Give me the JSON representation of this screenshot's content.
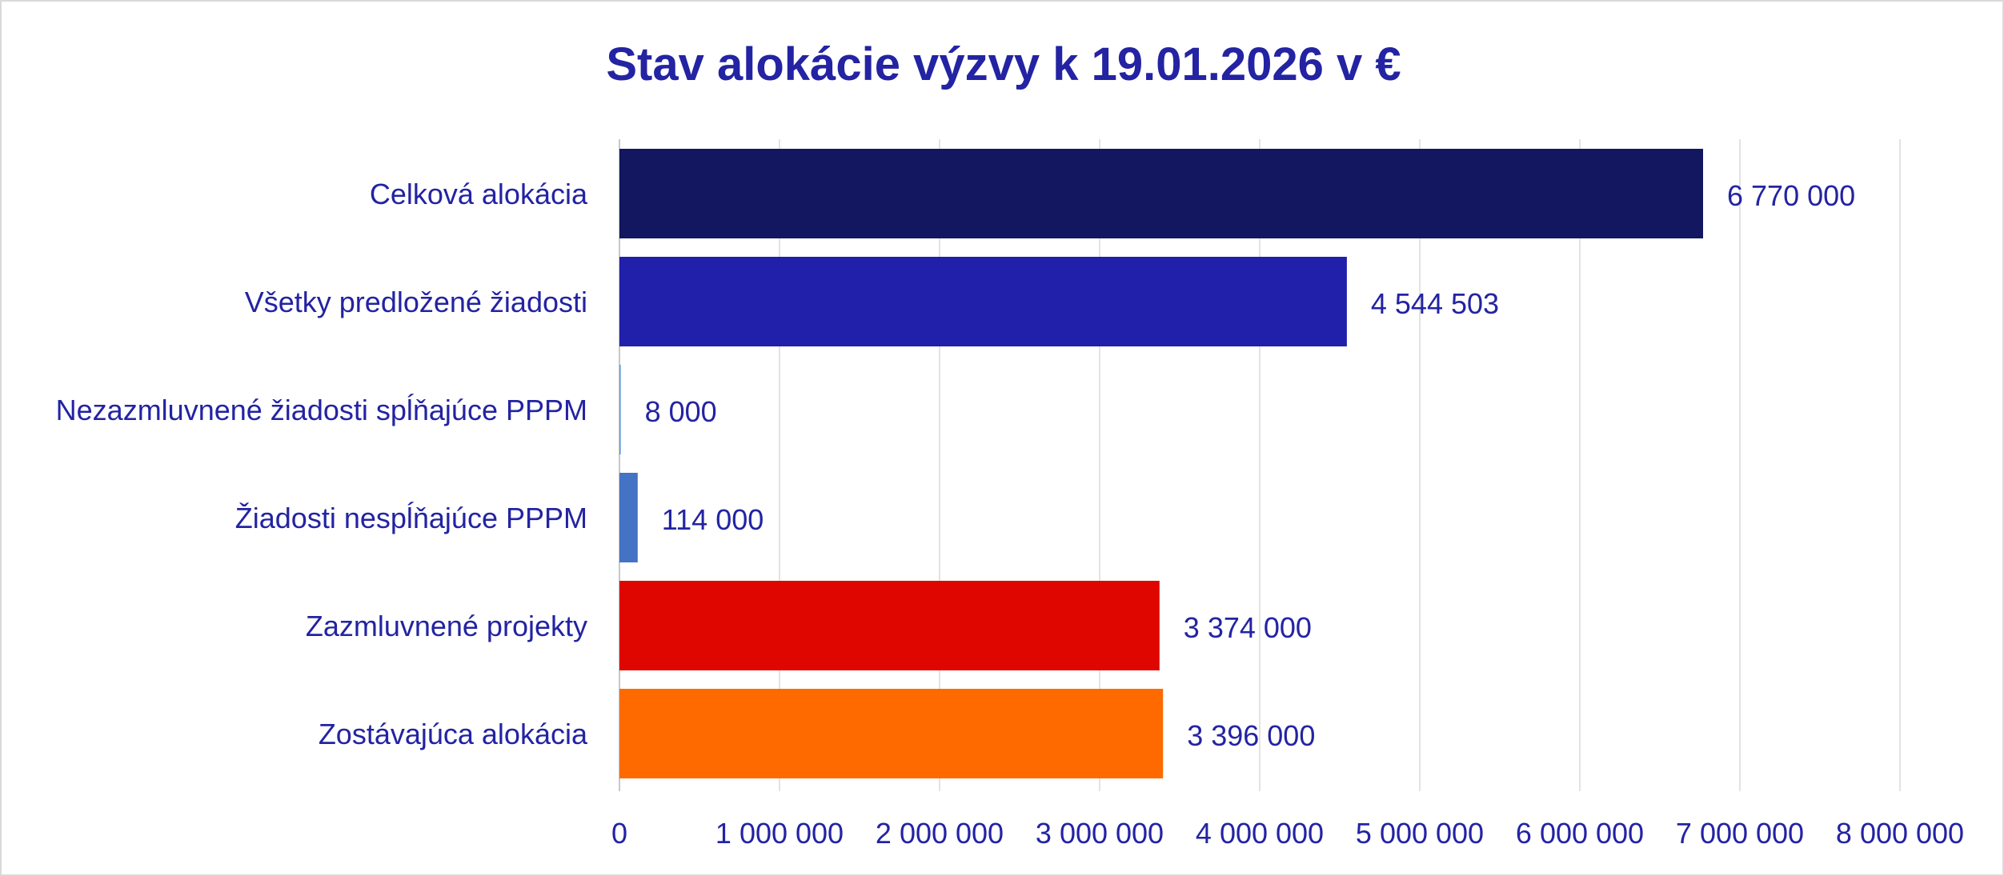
{
  "colors": {
    "text": "#2323a3",
    "grid": "#e3e3e3",
    "axis": "#c8c8c8"
  },
  "chart_data": {
    "type": "bar",
    "orientation": "horizontal",
    "title": "Stav alokácie výzvy k 19.01.2026 v €",
    "xlabel": "",
    "ylabel": "",
    "xlim": [
      0,
      8000000
    ],
    "grid": true,
    "legend": "none",
    "categories": [
      "Celková alokácia",
      "Všetky predložené žiadosti",
      "Nezazmluvnené žiadosti spĺňajúce PPPM",
      "Žiadosti nespĺňajúce PPPM",
      "Zazmluvnené projekty",
      "Zostávajúca alokácia"
    ],
    "values": [
      6770000,
      4544503,
      8000,
      114000,
      3374000,
      3396000
    ],
    "value_labels": [
      "6 770 000",
      "4 544 503",
      "8 000",
      "114 000",
      "3 374 000",
      "3 396 000"
    ],
    "bar_colors": [
      "#12175f",
      "#2020ab",
      "#5b9bd5",
      "#4472c4",
      "#e00600",
      "#ff6a00"
    ],
    "x_ticks": [
      0,
      1000000,
      2000000,
      3000000,
      4000000,
      5000000,
      6000000,
      7000000,
      8000000
    ],
    "x_tick_labels": [
      "0",
      "1 000 000",
      "2 000 000",
      "3 000 000",
      "4 000 000",
      "5 000 000",
      "6 000 000",
      "7 000 000",
      "8 000 000"
    ]
  }
}
